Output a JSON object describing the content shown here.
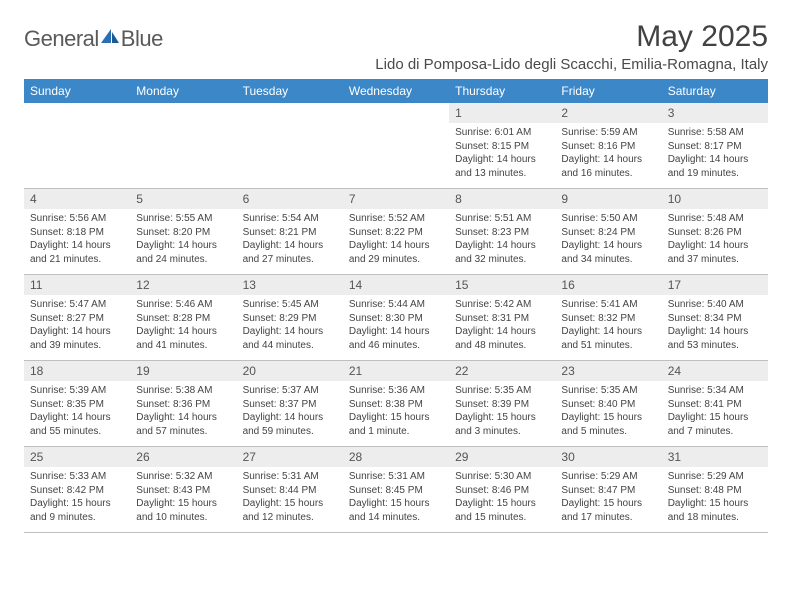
{
  "logo": {
    "text1": "General",
    "text2": "Blue"
  },
  "title": "May 2025",
  "location": "Lido di Pomposa-Lido degli Scacchi, Emilia-Romagna, Italy",
  "colors": {
    "header_bg": "#3b87c8",
    "header_text": "#ffffff",
    "daynum_bg": "#ededed",
    "border": "#bfbfbf",
    "body_text": "#444444",
    "month_text": "#424242",
    "logo_gray": "#5a5a5a",
    "logo_blue": "#2a6fb5"
  },
  "fonts": {
    "month_title_size": 30,
    "location_size": 15,
    "weekday_size": 12,
    "daynum_size": 12,
    "cell_size": 10
  },
  "weekdays": [
    "Sunday",
    "Monday",
    "Tuesday",
    "Wednesday",
    "Thursday",
    "Friday",
    "Saturday"
  ],
  "weeks": [
    [
      null,
      null,
      null,
      null,
      {
        "n": "1",
        "sr": "6:01 AM",
        "ss": "8:15 PM",
        "dl": "14 hours and 13 minutes."
      },
      {
        "n": "2",
        "sr": "5:59 AM",
        "ss": "8:16 PM",
        "dl": "14 hours and 16 minutes."
      },
      {
        "n": "3",
        "sr": "5:58 AM",
        "ss": "8:17 PM",
        "dl": "14 hours and 19 minutes."
      }
    ],
    [
      {
        "n": "4",
        "sr": "5:56 AM",
        "ss": "8:18 PM",
        "dl": "14 hours and 21 minutes."
      },
      {
        "n": "5",
        "sr": "5:55 AM",
        "ss": "8:20 PM",
        "dl": "14 hours and 24 minutes."
      },
      {
        "n": "6",
        "sr": "5:54 AM",
        "ss": "8:21 PM",
        "dl": "14 hours and 27 minutes."
      },
      {
        "n": "7",
        "sr": "5:52 AM",
        "ss": "8:22 PM",
        "dl": "14 hours and 29 minutes."
      },
      {
        "n": "8",
        "sr": "5:51 AM",
        "ss": "8:23 PM",
        "dl": "14 hours and 32 minutes."
      },
      {
        "n": "9",
        "sr": "5:50 AM",
        "ss": "8:24 PM",
        "dl": "14 hours and 34 minutes."
      },
      {
        "n": "10",
        "sr": "5:48 AM",
        "ss": "8:26 PM",
        "dl": "14 hours and 37 minutes."
      }
    ],
    [
      {
        "n": "11",
        "sr": "5:47 AM",
        "ss": "8:27 PM",
        "dl": "14 hours and 39 minutes."
      },
      {
        "n": "12",
        "sr": "5:46 AM",
        "ss": "8:28 PM",
        "dl": "14 hours and 41 minutes."
      },
      {
        "n": "13",
        "sr": "5:45 AM",
        "ss": "8:29 PM",
        "dl": "14 hours and 44 minutes."
      },
      {
        "n": "14",
        "sr": "5:44 AM",
        "ss": "8:30 PM",
        "dl": "14 hours and 46 minutes."
      },
      {
        "n": "15",
        "sr": "5:42 AM",
        "ss": "8:31 PM",
        "dl": "14 hours and 48 minutes."
      },
      {
        "n": "16",
        "sr": "5:41 AM",
        "ss": "8:32 PM",
        "dl": "14 hours and 51 minutes."
      },
      {
        "n": "17",
        "sr": "5:40 AM",
        "ss": "8:34 PM",
        "dl": "14 hours and 53 minutes."
      }
    ],
    [
      {
        "n": "18",
        "sr": "5:39 AM",
        "ss": "8:35 PM",
        "dl": "14 hours and 55 minutes."
      },
      {
        "n": "19",
        "sr": "5:38 AM",
        "ss": "8:36 PM",
        "dl": "14 hours and 57 minutes."
      },
      {
        "n": "20",
        "sr": "5:37 AM",
        "ss": "8:37 PM",
        "dl": "14 hours and 59 minutes."
      },
      {
        "n": "21",
        "sr": "5:36 AM",
        "ss": "8:38 PM",
        "dl": "15 hours and 1 minute."
      },
      {
        "n": "22",
        "sr": "5:35 AM",
        "ss": "8:39 PM",
        "dl": "15 hours and 3 minutes."
      },
      {
        "n": "23",
        "sr": "5:35 AM",
        "ss": "8:40 PM",
        "dl": "15 hours and 5 minutes."
      },
      {
        "n": "24",
        "sr": "5:34 AM",
        "ss": "8:41 PM",
        "dl": "15 hours and 7 minutes."
      }
    ],
    [
      {
        "n": "25",
        "sr": "5:33 AM",
        "ss": "8:42 PM",
        "dl": "15 hours and 9 minutes."
      },
      {
        "n": "26",
        "sr": "5:32 AM",
        "ss": "8:43 PM",
        "dl": "15 hours and 10 minutes."
      },
      {
        "n": "27",
        "sr": "5:31 AM",
        "ss": "8:44 PM",
        "dl": "15 hours and 12 minutes."
      },
      {
        "n": "28",
        "sr": "5:31 AM",
        "ss": "8:45 PM",
        "dl": "15 hours and 14 minutes."
      },
      {
        "n": "29",
        "sr": "5:30 AM",
        "ss": "8:46 PM",
        "dl": "15 hours and 15 minutes."
      },
      {
        "n": "30",
        "sr": "5:29 AM",
        "ss": "8:47 PM",
        "dl": "15 hours and 17 minutes."
      },
      {
        "n": "31",
        "sr": "5:29 AM",
        "ss": "8:48 PM",
        "dl": "15 hours and 18 minutes."
      }
    ]
  ],
  "labels": {
    "sunrise": "Sunrise: ",
    "sunset": "Sunset: ",
    "daylight": "Daylight: "
  }
}
